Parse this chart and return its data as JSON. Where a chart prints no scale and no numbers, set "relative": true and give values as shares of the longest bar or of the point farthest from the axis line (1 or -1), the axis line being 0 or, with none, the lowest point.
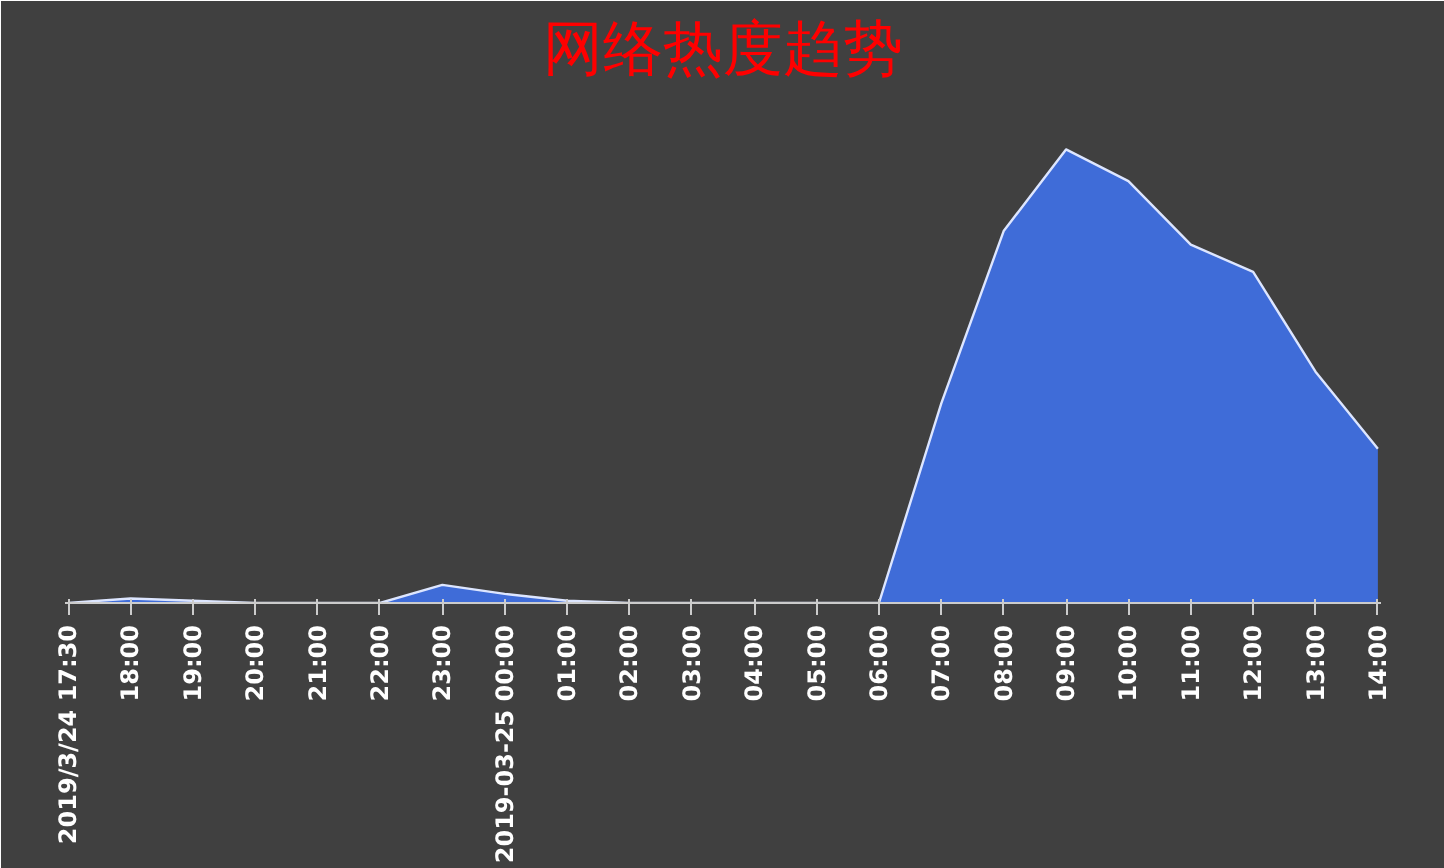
{
  "chart_data": {
    "type": "area",
    "title": "网络热度趋势",
    "relative": true,
    "categories": [
      "2019/3/24 17:30",
      "18:00",
      "19:00",
      "20:00",
      "21:00",
      "22:00",
      "23:00",
      "2019-03-25 00:00",
      "01:00",
      "02:00",
      "03:00",
      "04:00",
      "05:00",
      "06:00",
      "07:00",
      "08:00",
      "09:00",
      "10:00",
      "11:00",
      "12:00",
      "13:00",
      "14:00"
    ],
    "series": [
      {
        "color": "#3f6fe0",
        "values": [
          0,
          0.01,
          0.005,
          0,
          0,
          0,
          0.04,
          0.02,
          0.005,
          0,
          0,
          0,
          0,
          0,
          0.44,
          0.82,
          1,
          0.93,
          0.79,
          0.73,
          0.51,
          0.34
        ]
      }
    ]
  }
}
